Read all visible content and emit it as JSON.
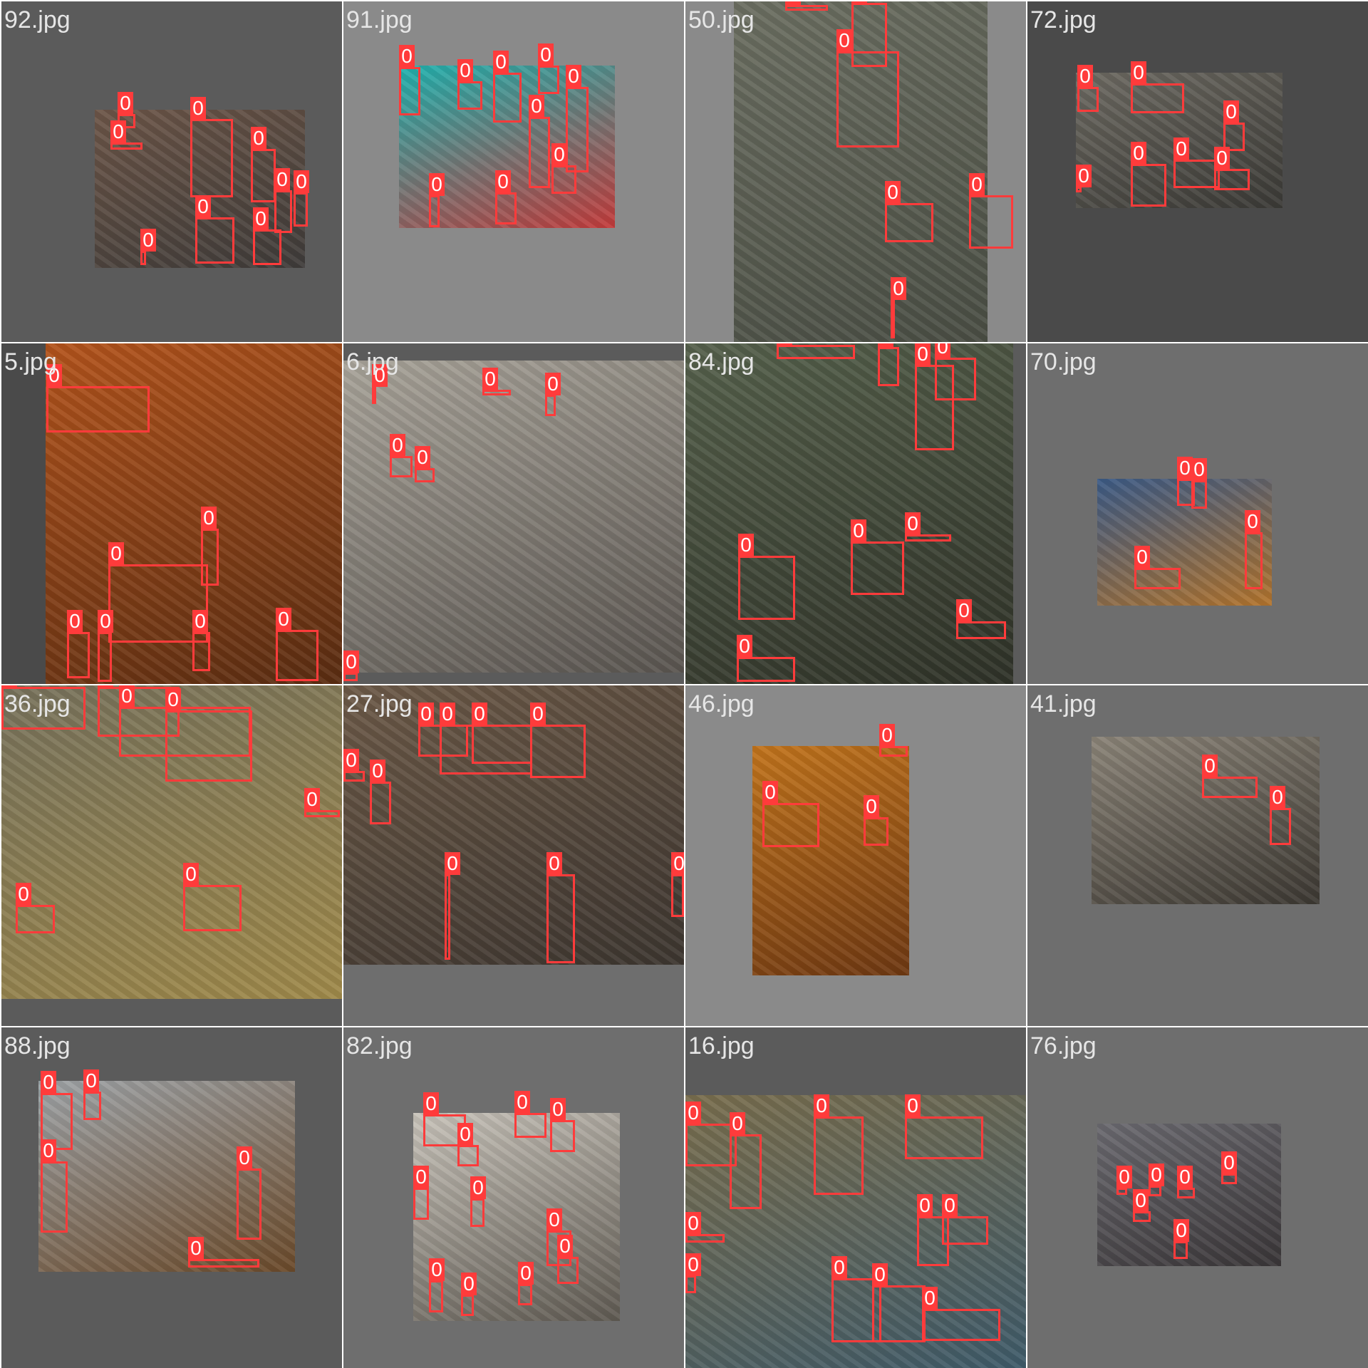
{
  "viewer": {
    "label_text": "0",
    "box_color": "#ff3b3b",
    "filename_color": "#e6e6e6"
  },
  "tiles": [
    {
      "filename": "92.jpg",
      "bg": "#5b5b5b",
      "photo_colors": [
        "#6d5648",
        "#3f3c3a"
      ]
    },
    {
      "filename": "91.jpg",
      "bg": "#8a8a8a",
      "photo_colors": [
        "#1fb3b0",
        "#c43b3b"
      ]
    },
    {
      "filename": "50.jpg",
      "bg": "#8a8a8a",
      "photo_colors": [
        "#6c6f62",
        "#4a4e44"
      ]
    },
    {
      "filename": "72.jpg",
      "bg": "#4a4a4a",
      "photo_colors": [
        "#6d6a62",
        "#3b3a36"
      ]
    },
    {
      "filename": "5.jpg",
      "bg": "#4a4a4a",
      "photo_colors": [
        "#b4541c",
        "#5a2d12"
      ]
    },
    {
      "filename": "6.jpg",
      "bg": "#5b5b5b",
      "photo_colors": [
        "#a9a49a",
        "#5a5550"
      ]
    },
    {
      "filename": "84.jpg",
      "bg": "#5b5b5b",
      "photo_colors": [
        "#56614c",
        "#2f3228"
      ]
    },
    {
      "filename": "70.jpg",
      "bg": "#6e6e6e",
      "photo_colors": [
        "#3b5a86",
        "#b3742c"
      ]
    },
    {
      "filename": "36.jpg",
      "bg": "#5b5b5b",
      "photo_colors": [
        "#77725c",
        "#a08a4a"
      ]
    },
    {
      "filename": "27.jpg",
      "bg": "#6e6e6e",
      "photo_colors": [
        "#6d5a48",
        "#3d3630"
      ]
    },
    {
      "filename": "46.jpg",
      "bg": "#8a8a8a",
      "photo_colors": [
        "#c2741c",
        "#6e3812"
      ]
    },
    {
      "filename": "41.jpg",
      "bg": "#6e6e6e",
      "photo_colors": [
        "#8b8478",
        "#3c3832"
      ]
    },
    {
      "filename": "88.jpg",
      "bg": "#5b5b5b",
      "photo_colors": [
        "#9fa4a8",
        "#6b4a2a"
      ]
    },
    {
      "filename": "82.jpg",
      "bg": "#6e6e6e",
      "photo_colors": [
        "#c9c4bb",
        "#5f5a52"
      ]
    },
    {
      "filename": "16.jpg",
      "bg": "#5b5b5b",
      "photo_colors": [
        "#7a6e4e",
        "#3f5b6a"
      ]
    },
    {
      "filename": "76.jpg",
      "bg": "#6e6e6e",
      "photo_colors": [
        "#6b6a70",
        "#3a3638"
      ]
    }
  ]
}
